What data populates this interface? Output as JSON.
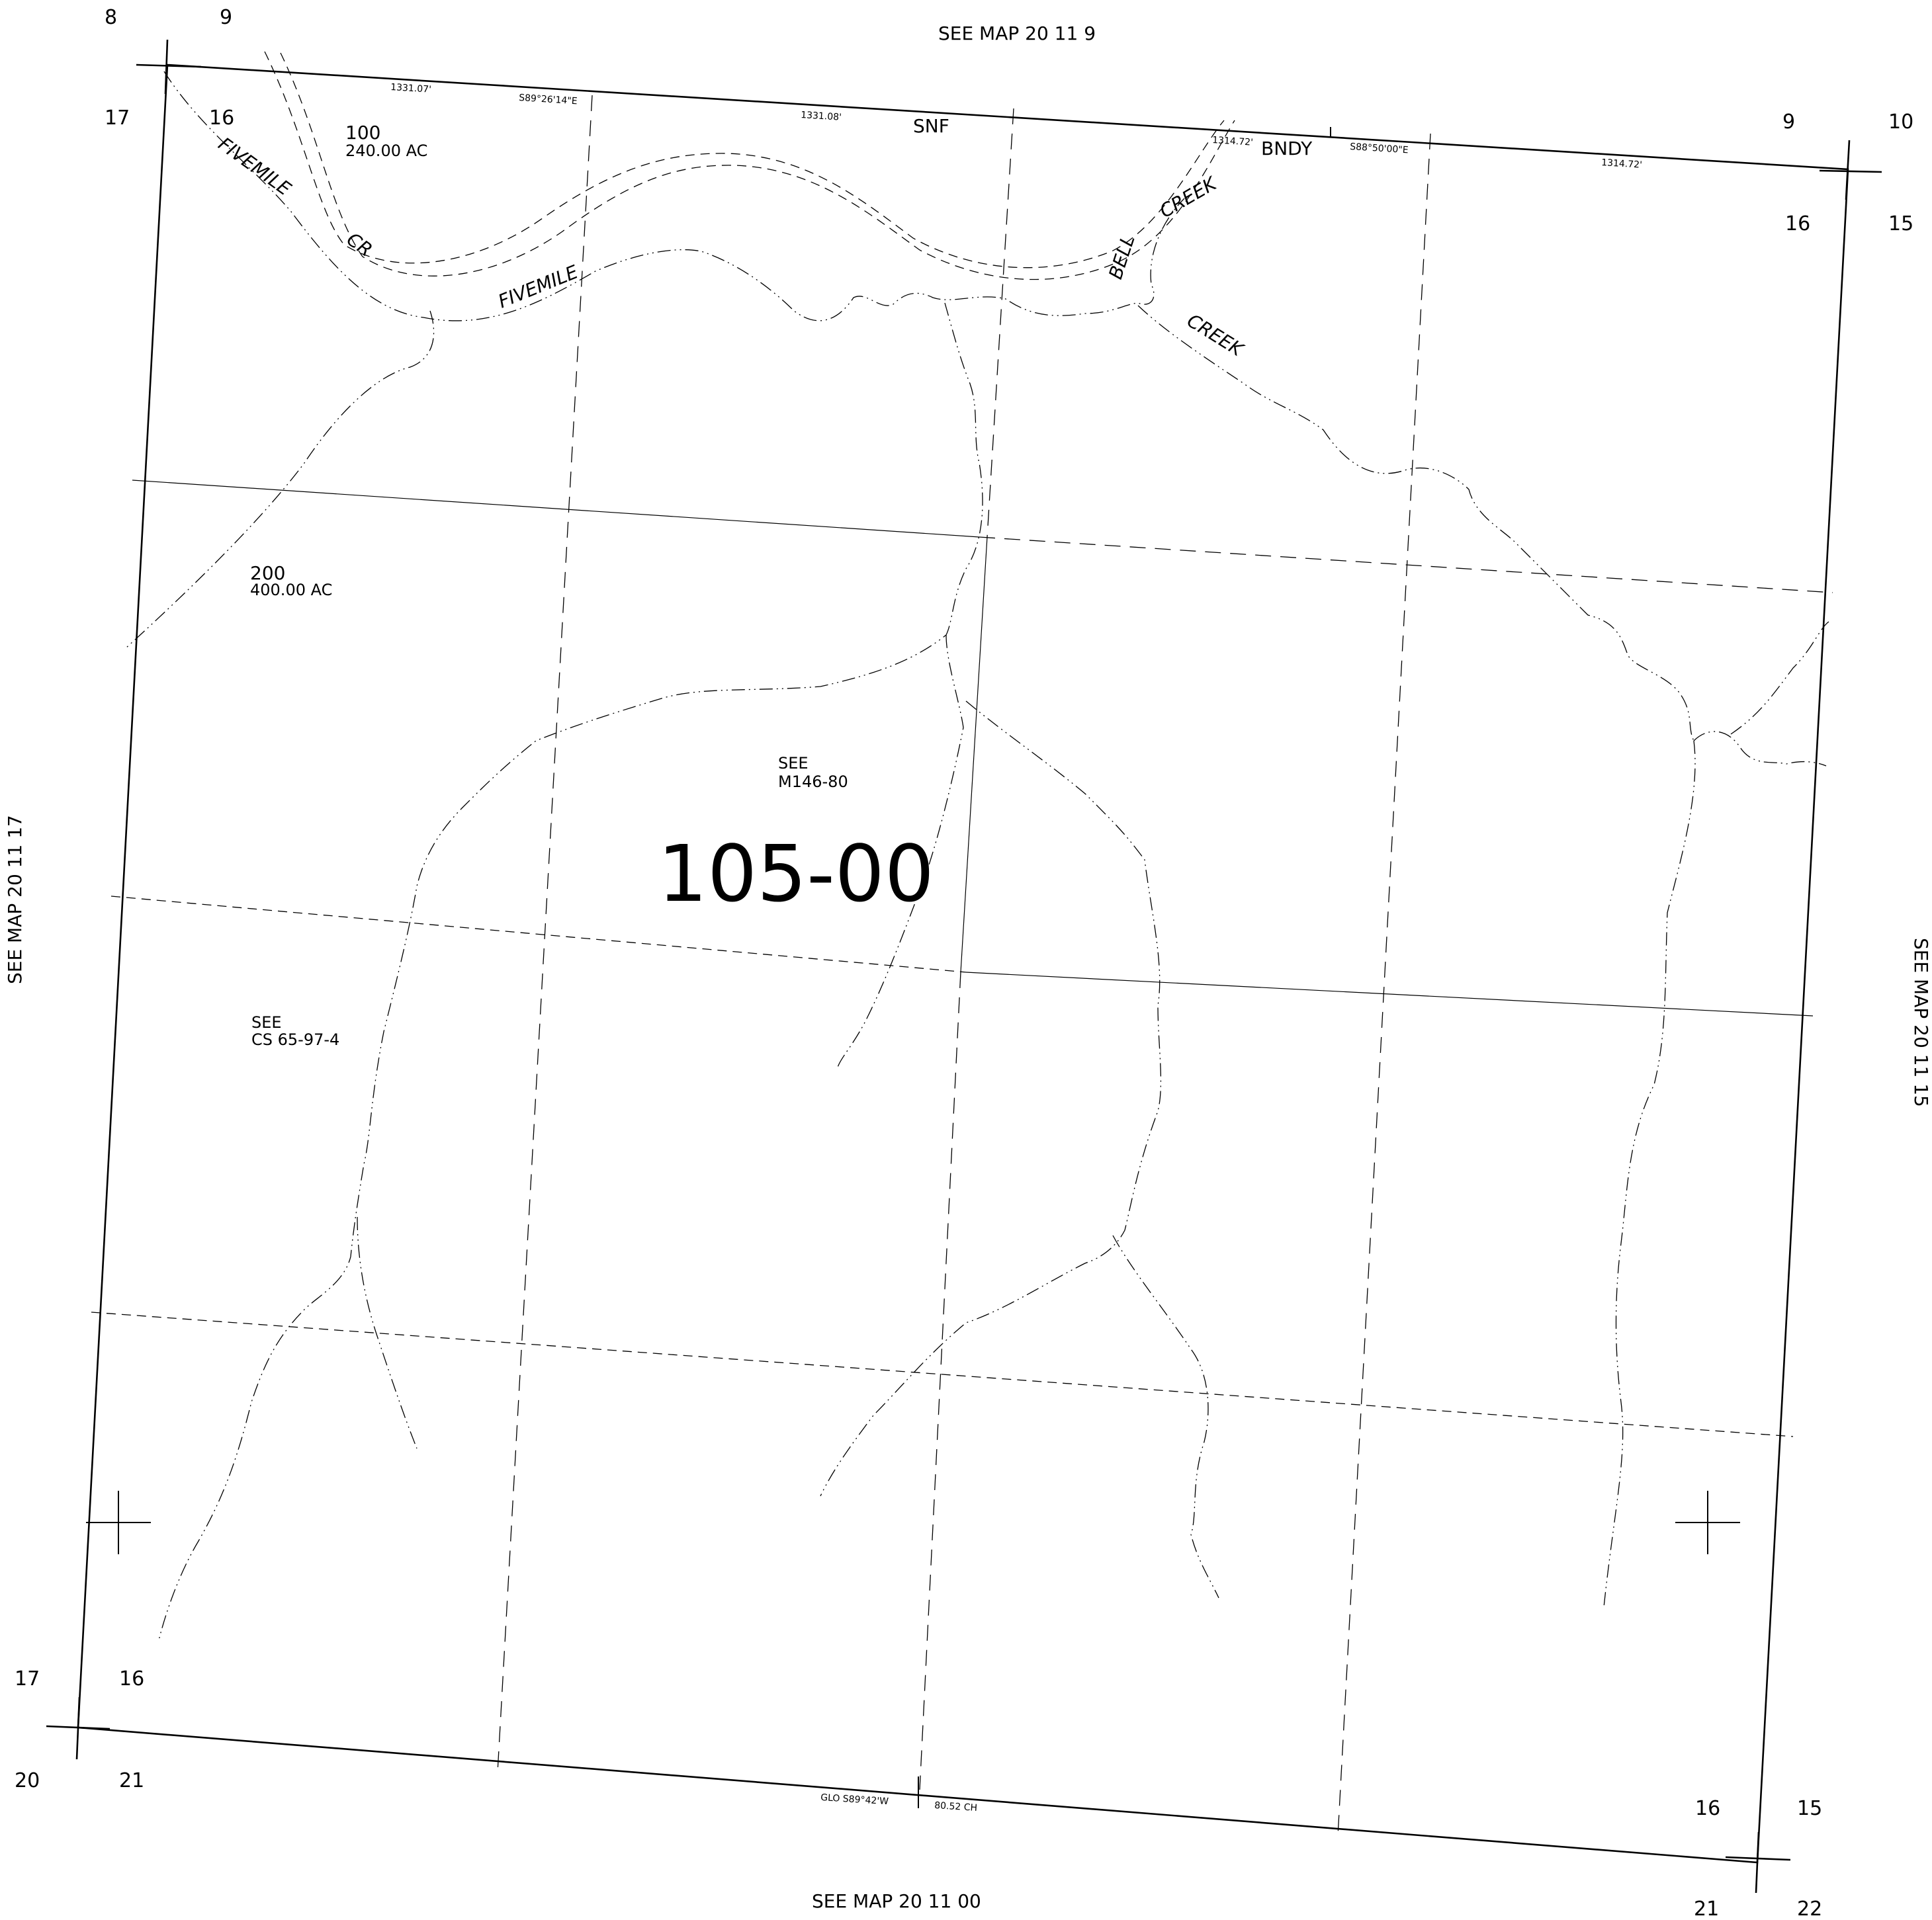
{
  "map_refs": {
    "top": "SEE MAP  20  11  9",
    "bottom": "SEE MAP  20  11  00",
    "left": "SEE MAP 20  11  17",
    "right": "SEE MAP 20  11  15"
  },
  "corners": {
    "tl": [
      "8",
      "9",
      "17",
      "16"
    ],
    "tr": [
      "9",
      "10",
      "16",
      "15"
    ],
    "bl": [
      "17",
      "16",
      "20",
      "21"
    ],
    "br": [
      "16",
      "15",
      "21",
      "22"
    ]
  },
  "bearings": {
    "top_dist_1": "1331.07'",
    "top_bearing_1": "S89°26'14\"E",
    "top_dist_2": "1331.08'",
    "top_dist_3": "1314.72'",
    "top_bearing_2": "S88°50'00\"E",
    "top_dist_4": "1314.72'",
    "bottom_glo": "GLO  S89°42'W",
    "bottom_chain": "80.52 CH"
  },
  "labels": {
    "snf": "SNF",
    "bndy": "BNDY",
    "fivemile_1": "FIVEMILE",
    "cr": "CR",
    "fivemile_2": "FIVEMILE",
    "bell": "BELL",
    "creek_1": "CREEK",
    "creek_2": "CREEK"
  },
  "parcels": {
    "p100_num": "100",
    "p100_area": "240.00 AC",
    "p200_num": "200",
    "p200_area": "400.00 AC",
    "see_m146_1": "SEE",
    "see_m146_2": "M146-80",
    "see_cs_1": "SEE",
    "see_cs_2": "CS 65-97-4"
  },
  "map_number": "105-00"
}
